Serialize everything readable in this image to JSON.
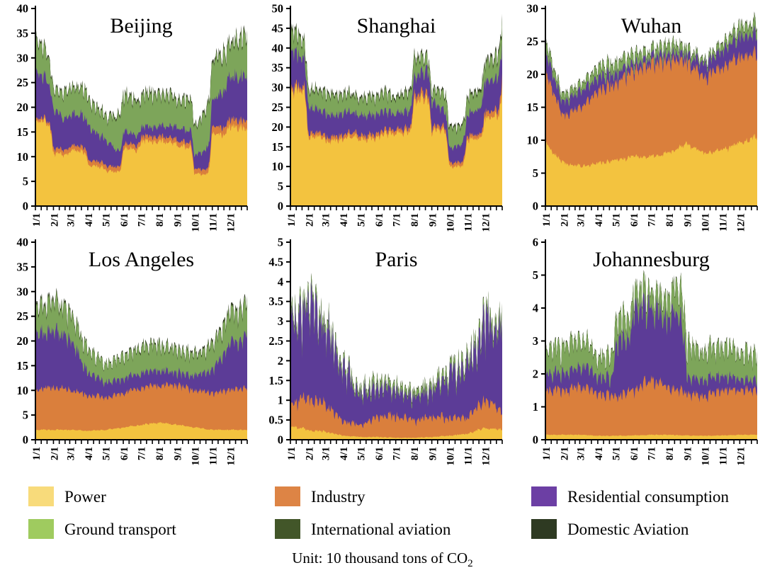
{
  "unit_note": {
    "text": "Unit: 10 thousand tons of CO",
    "sub": "2"
  },
  "legend": {
    "items": [
      {
        "label": "Power",
        "color": "#F8DB7B"
      },
      {
        "label": "Industry",
        "color": "#DD8445"
      },
      {
        "label": "Residential consumption",
        "color": "#6C3FA4"
      },
      {
        "label": "Ground transport",
        "color": "#9FCB5F"
      },
      {
        "label": "International aviation",
        "color": "#425629"
      },
      {
        "label": "Domestic Aviation",
        "color": "#2E3A22"
      }
    ]
  },
  "series_colors": {
    "Power": "#F3C33F",
    "Industry": "#DA7F3C",
    "Residential consumption": "#5C3C97",
    "Ground transport": "#7DA55A",
    "International aviation": "#42552B",
    "Domestic Aviation": "#2B331F"
  },
  "chart_data": [
    {
      "type": "area",
      "stacked": true,
      "title": "Beijing",
      "ylim": [
        0,
        40
      ],
      "y_ticks": [
        0,
        5,
        10,
        15,
        20,
        25,
        30,
        35,
        40
      ],
      "x_tick_labels": [
        "1/1",
        "2/1",
        "3/1",
        "4/1",
        "5/1",
        "6/1",
        "7/1",
        "8/1",
        "9/1",
        "10/1",
        "11/1",
        "12/1"
      ],
      "anchor_dates": [
        "1/1",
        "2/1",
        "3/1",
        "4/1",
        "5/1",
        "6/1",
        "7/1",
        "8/1",
        "9/1",
        "10/1",
        "11/1",
        "12/1",
        "12/31"
      ],
      "series": [
        {
          "name": "Power",
          "interp": "hold",
          "values": [
            17,
            10.5,
            11,
            8,
            7,
            11.5,
            13,
            13,
            12,
            6.5,
            14.5,
            16,
            15.5
          ]
        },
        {
          "name": "Industry",
          "interp": "hold",
          "values": [
            0.6,
            1,
            1,
            1,
            1,
            1,
            1,
            1,
            1,
            1,
            1.5,
            1.5,
            2
          ]
        },
        {
          "name": "Residential consumption",
          "interp": "linear",
          "values": [
            9,
            7.5,
            6,
            6.5,
            5,
            2.5,
            1.8,
            2,
            2.5,
            2.5,
            5,
            8.5,
            9
          ]
        },
        {
          "name": "Ground transport",
          "interp": "linear",
          "values": [
            7,
            4,
            5.5,
            5,
            4.8,
            7.5,
            6.5,
            6.5,
            5.5,
            6,
            8,
            6.5,
            8
          ]
        },
        {
          "name": "International aviation",
          "interp": "linear",
          "values": [
            0.25,
            0.2,
            0.2,
            0.2,
            0.2,
            0.25,
            0.25,
            0.25,
            0.25,
            0.2,
            0.3,
            0.3,
            0.3
          ]
        },
        {
          "name": "Domestic Aviation",
          "interp": "linear",
          "values": [
            0.25,
            0.2,
            0.2,
            0.2,
            0.2,
            0.25,
            0.25,
            0.25,
            0.25,
            0.2,
            0.3,
            0.3,
            0.3
          ]
        }
      ]
    },
    {
      "type": "area",
      "stacked": true,
      "title": "Shanghai",
      "ylim": [
        0,
        50
      ],
      "y_ticks": [
        0,
        5,
        10,
        15,
        20,
        25,
        30,
        35,
        40,
        45,
        50
      ],
      "x_tick_labels": [
        "1/1",
        "2/1",
        "3/1",
        "4/1",
        "5/1",
        "6/1",
        "7/1",
        "8/1",
        "9/1",
        "10/1",
        "11/1",
        "12/1"
      ],
      "anchor_dates": [
        "1/1",
        "2/1",
        "3/1",
        "4/1",
        "5/1",
        "6/1",
        "7/1",
        "8/1",
        "9/1",
        "10/1",
        "11/1",
        "12/1",
        "12/31"
      ],
      "series": [
        {
          "name": "Power",
          "interp": "hold",
          "values": [
            29.5,
            17.5,
            16.5,
            17.5,
            17,
            18,
            18.5,
            27,
            19,
            10,
            17,
            22.5,
            30
          ]
        },
        {
          "name": "Industry",
          "interp": "hold",
          "values": [
            1,
            1,
            1,
            1,
            1,
            1,
            1,
            1.5,
            1,
            1,
            1,
            1.5,
            2.5
          ]
        },
        {
          "name": "Residential consumption",
          "interp": "linear",
          "values": [
            9,
            6.5,
            5.5,
            5.5,
            5,
            5,
            4,
            4.5,
            6,
            3.5,
            5,
            7.5,
            8.5
          ]
        },
        {
          "name": "Ground transport",
          "interp": "linear",
          "values": [
            5,
            4,
            5,
            4.5,
            4,
            4.5,
            4,
            4.5,
            2.5,
            5,
            4,
            4.5,
            5.5
          ]
        },
        {
          "name": "International aviation",
          "interp": "linear",
          "values": [
            0.4,
            0.3,
            0.3,
            0.3,
            0.3,
            0.3,
            0.3,
            0.4,
            0.3,
            0.3,
            0.3,
            0.4,
            0.5
          ]
        },
        {
          "name": "Domestic Aviation",
          "interp": "linear",
          "values": [
            0.4,
            0.3,
            0.3,
            0.3,
            0.3,
            0.3,
            0.3,
            0.4,
            0.3,
            0.3,
            0.3,
            0.4,
            0.5
          ]
        }
      ]
    },
    {
      "type": "area",
      "stacked": true,
      "title": "Wuhan",
      "ylim": [
        0,
        30
      ],
      "y_ticks": [
        0,
        5,
        10,
        15,
        20,
        25,
        30
      ],
      "x_tick_labels": [
        "1/1",
        "2/1",
        "3/1",
        "4/1",
        "5/1",
        "6/1",
        "7/1",
        "8/1",
        "9/1",
        "10/1",
        "11/1",
        "12/1"
      ],
      "anchor_dates": [
        "1/1",
        "2/1",
        "3/1",
        "4/1",
        "5/1",
        "6/1",
        "7/1",
        "8/1",
        "9/1",
        "10/1",
        "11/1",
        "12/1",
        "12/31"
      ],
      "series": [
        {
          "name": "Power",
          "interp": "linear",
          "values": [
            9.5,
            6.5,
            6,
            6.5,
            7,
            7.5,
            7.5,
            8,
            9.5,
            8,
            8.5,
            9.5,
            10.5
          ]
        },
        {
          "name": "Industry",
          "interp": "linear",
          "values": [
            11,
            7,
            9,
            11,
            11.5,
            13,
            14,
            14,
            12.5,
            11.5,
            12.5,
            13,
            12.5
          ]
        },
        {
          "name": "Residential consumption",
          "interp": "linear",
          "values": [
            3,
            2,
            2.5,
            2,
            1.5,
            1,
            1,
            1,
            1,
            2,
            2.5,
            3,
            3
          ]
        },
        {
          "name": "Ground transport",
          "interp": "linear",
          "values": [
            1.5,
            1,
            1,
            1.5,
            1.5,
            1.5,
            1,
            1.5,
            1,
            0.5,
            1,
            1.5,
            1.5
          ]
        },
        {
          "name": "International aviation",
          "interp": "linear",
          "values": [
            0.12,
            0.08,
            0.08,
            0.1,
            0.1,
            0.1,
            0.1,
            0.1,
            0.1,
            0.08,
            0.1,
            0.12,
            0.12
          ]
        },
        {
          "name": "Domestic Aviation",
          "interp": "linear",
          "values": [
            0.12,
            0.08,
            0.08,
            0.1,
            0.1,
            0.1,
            0.1,
            0.1,
            0.1,
            0.08,
            0.1,
            0.12,
            0.12
          ]
        }
      ]
    },
    {
      "type": "area",
      "stacked": true,
      "title": "Los Angeles",
      "ylim": [
        0,
        40
      ],
      "y_ticks": [
        0,
        5,
        10,
        15,
        20,
        25,
        30,
        35,
        40
      ],
      "x_tick_labels": [
        "1/1",
        "2/1",
        "3/1",
        "4/1",
        "5/1",
        "6/1",
        "7/1",
        "8/1",
        "9/1",
        "10/1",
        "11/1",
        "12/1"
      ],
      "anchor_dates": [
        "1/1",
        "2/1",
        "3/1",
        "4/1",
        "5/1",
        "6/1",
        "7/1",
        "8/1",
        "9/1",
        "10/1",
        "11/1",
        "12/1",
        "12/31"
      ],
      "series": [
        {
          "name": "Power",
          "interp": "linear",
          "values": [
            2,
            2,
            2,
            1.8,
            2,
            2.5,
            3,
            3.5,
            3,
            2.5,
            2,
            2,
            2
          ]
        },
        {
          "name": "Industry",
          "interp": "linear",
          "values": [
            8,
            8.5,
            8,
            7.2,
            6.5,
            7,
            7.5,
            7.5,
            8,
            7.5,
            7.5,
            8,
            8.5
          ]
        },
        {
          "name": "Residential consumption",
          "interp": "linear",
          "values": [
            11,
            11.5,
            10,
            4.5,
            3,
            3,
            3,
            3,
            2.5,
            3,
            4.5,
            9,
            10.5
          ]
        },
        {
          "name": "Ground transport",
          "interp": "linear",
          "values": [
            5,
            6,
            5,
            4.5,
            3.5,
            4.5,
            5,
            5,
            4.5,
            4,
            5,
            6,
            6
          ]
        },
        {
          "name": "International aviation",
          "interp": "linear",
          "values": [
            0.3,
            0.3,
            0.25,
            0.15,
            0.1,
            0.15,
            0.2,
            0.2,
            0.2,
            0.2,
            0.25,
            0.3,
            0.3
          ]
        },
        {
          "name": "Domestic Aviation",
          "interp": "linear",
          "values": [
            0.3,
            0.3,
            0.25,
            0.15,
            0.1,
            0.15,
            0.2,
            0.2,
            0.2,
            0.2,
            0.25,
            0.3,
            0.3
          ]
        }
      ]
    },
    {
      "type": "area",
      "stacked": true,
      "title": "Paris",
      "ylim": [
        0,
        5
      ],
      "y_ticks": [
        0,
        0.5,
        1,
        1.5,
        2,
        2.5,
        3,
        3.5,
        4,
        4.5,
        5
      ],
      "x_tick_labels": [
        "1/1",
        "2/1",
        "3/1",
        "4/1",
        "5/1",
        "6/1",
        "7/1",
        "8/1",
        "9/1",
        "10/1",
        "11/1",
        "12/1"
      ],
      "anchor_dates": [
        "1/1",
        "2/1",
        "3/1",
        "4/1",
        "5/1",
        "6/1",
        "7/1",
        "8/1",
        "9/1",
        "10/1",
        "11/1",
        "12/1",
        "12/31"
      ],
      "series": [
        {
          "name": "Power",
          "interp": "linear",
          "values": [
            0.35,
            0.25,
            0.2,
            0.1,
            0.07,
            0.07,
            0.05,
            0.05,
            0.07,
            0.1,
            0.15,
            0.3,
            0.25
          ]
        },
        {
          "name": "Industry",
          "interp": "linear",
          "values": [
            0.55,
            0.8,
            0.7,
            0.35,
            0.3,
            0.5,
            0.55,
            0.45,
            0.5,
            0.45,
            0.4,
            0.7,
            0.45
          ]
        },
        {
          "name": "Residential consumption",
          "interp": "linear",
          "values": [
            1.8,
            2.3,
            1.9,
            1.25,
            0.75,
            0.7,
            0.6,
            0.55,
            0.65,
            1,
            1.3,
            1.8,
            2.3
          ]
        },
        {
          "name": "Ground transport",
          "interp": "linear",
          "values": [
            0.15,
            0.15,
            0.15,
            0.1,
            0.12,
            0.13,
            0.12,
            0.12,
            0.13,
            0.15,
            0.15,
            0.15,
            0.2
          ]
        },
        {
          "name": "International aviation",
          "interp": "linear",
          "values": [
            0.015,
            0.015,
            0.015,
            0.015,
            0.015,
            0.015,
            0.015,
            0.015,
            0.015,
            0.015,
            0.015,
            0.015,
            0.015
          ]
        },
        {
          "name": "Domestic Aviation",
          "interp": "linear",
          "values": [
            0.015,
            0.015,
            0.015,
            0.015,
            0.015,
            0.015,
            0.015,
            0.015,
            0.015,
            0.015,
            0.015,
            0.015,
            0.015
          ]
        }
      ]
    },
    {
      "type": "area",
      "stacked": true,
      "title": "Johannesburg",
      "ylim": [
        0,
        6
      ],
      "y_ticks": [
        0,
        1,
        2,
        3,
        4,
        5,
        6
      ],
      "x_tick_labels": [
        "1/1",
        "2/1",
        "3/1",
        "4/1",
        "5/1",
        "6/1",
        "7/1",
        "8/1",
        "9/1",
        "10/1",
        "11/1",
        "12/1"
      ],
      "anchor_dates": [
        "1/1",
        "2/1",
        "3/1",
        "4/1",
        "5/1",
        "6/1",
        "7/1",
        "8/1",
        "9/1",
        "10/1",
        "11/1",
        "12/1",
        "12/31"
      ],
      "series": [
        {
          "name": "Power",
          "interp": "linear",
          "values": [
            0.15,
            0.15,
            0.15,
            0.12,
            0.12,
            0.13,
            0.15,
            0.15,
            0.13,
            0.12,
            0.13,
            0.15,
            0.15
          ]
        },
        {
          "name": "Industry",
          "interp": "linear",
          "values": [
            1.35,
            1.35,
            1.45,
            1.28,
            1.18,
            1.37,
            1.65,
            1.45,
            1.27,
            1.18,
            1.37,
            1.35,
            1.3
          ]
        },
        {
          "name": "Residential consumption",
          "interp": "hold",
          "values": [
            0.5,
            0.55,
            0.6,
            0.5,
            1.6,
            2.4,
            2.1,
            2.2,
            0.5,
            0.5,
            0.4,
            0.3,
            0.35
          ]
        },
        {
          "name": "Ground transport",
          "interp": "linear",
          "values": [
            0.7,
            0.8,
            0.8,
            0.6,
            0.7,
            0.6,
            0.5,
            0.6,
            1,
            0.8,
            0.9,
            0.8,
            0.75
          ]
        },
        {
          "name": "International aviation",
          "interp": "linear",
          "values": [
            0.02,
            0.02,
            0.02,
            0.02,
            0.02,
            0.02,
            0.02,
            0.02,
            0.02,
            0.02,
            0.02,
            0.02,
            0.02
          ]
        },
        {
          "name": "Domestic Aviation",
          "interp": "linear",
          "values": [
            0.02,
            0.02,
            0.02,
            0.02,
            0.02,
            0.02,
            0.02,
            0.02,
            0.02,
            0.02,
            0.02,
            0.02,
            0.02
          ]
        }
      ]
    }
  ]
}
